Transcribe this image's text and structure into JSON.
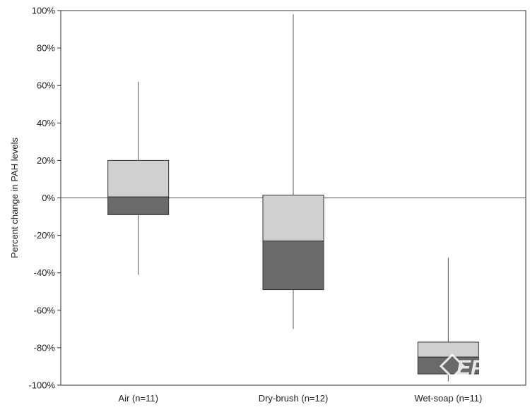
{
  "chart_data": {
    "type": "box",
    "ylabel": "Percent change in PAH levels",
    "ylim": [
      -100,
      100
    ],
    "ytick_step": 20,
    "ytick_suffix": "%",
    "grid": false,
    "zero_line": true,
    "categories": [
      "Air (n=11)",
      "Dry-brush (n=12)",
      "Wet-soap (n=11)"
    ],
    "boxes": [
      {
        "category": "Air (n=11)",
        "min": -41,
        "q1": -9,
        "median": 0.5,
        "q3": 20,
        "max": 62
      },
      {
        "category": "Dry-brush (n=12)",
        "min": -70,
        "q1": -49,
        "median": -23,
        "q3": 1.5,
        "max": 98
      },
      {
        "category": "Wet-soap (n=11)",
        "min": -98,
        "q1": -94,
        "median": -85,
        "q3": -77,
        "max": -32
      }
    ],
    "colors": {
      "upper_box": "#d0d0d0",
      "lower_box": "#6a6a6a",
      "outline": "#333333",
      "whisker": "#555555"
    }
  },
  "watermark": {
    "text": "EPN",
    "icon": "diamond-logo-icon"
  }
}
